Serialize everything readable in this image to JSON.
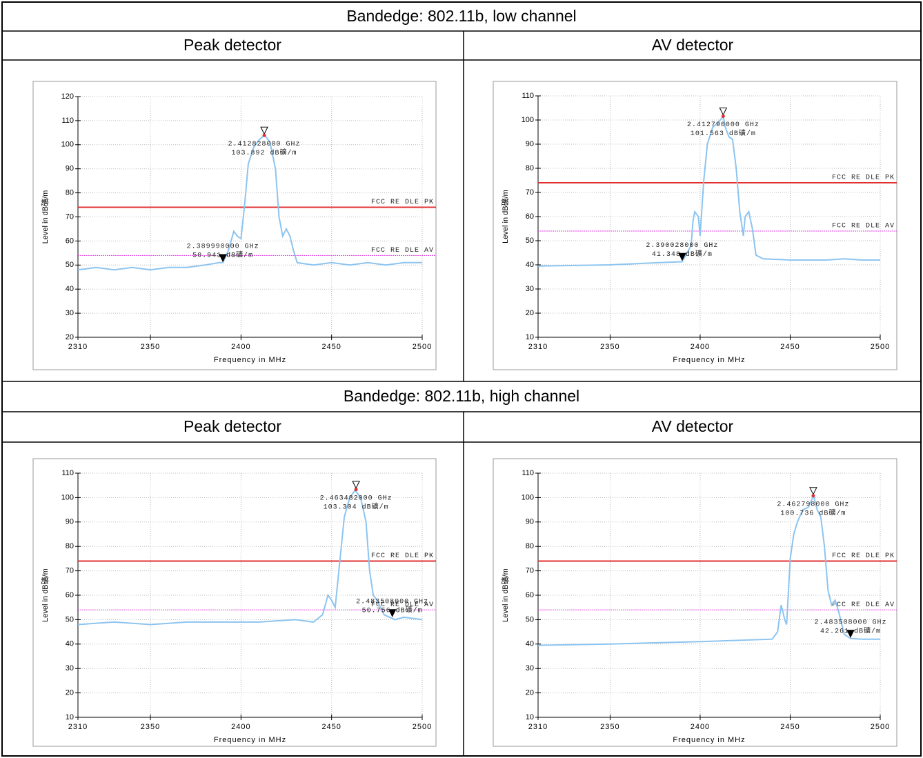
{
  "table": {
    "rows": [
      {
        "title": "Bandedge: 802.11b, low channel",
        "columns": [
          "Peak detector",
          "AV detector"
        ]
      },
      {
        "title": "Bandedge: 802.11b, high channel",
        "columns": [
          "Peak detector",
          "AV detector"
        ]
      }
    ]
  },
  "chart_data": [
    {
      "type": "line",
      "xlabel": "Frequency in MHz",
      "ylabel": "Level in dB礦/m",
      "xlim": [
        2310,
        2500
      ],
      "xticks": [
        2310,
        2350,
        2400,
        2450,
        2500
      ],
      "ylim": [
        20,
        120
      ],
      "yticks": [
        20,
        30,
        40,
        50,
        60,
        70,
        80,
        90,
        100,
        110,
        120
      ],
      "grid": true,
      "color": "#8cc4f0",
      "x": [
        2310,
        2320,
        2330,
        2340,
        2350,
        2360,
        2370,
        2380,
        2388,
        2390,
        2393,
        2396,
        2398,
        2400,
        2402,
        2404,
        2407,
        2410,
        2413,
        2416,
        2419,
        2421,
        2423,
        2425,
        2427,
        2429,
        2431,
        2440,
        2450,
        2460,
        2470,
        2480,
        2490,
        2500
      ],
      "values": [
        48,
        49,
        48,
        49,
        48,
        49,
        49,
        50,
        51,
        51,
        56,
        64,
        62,
        61,
        75,
        92,
        99,
        102,
        104,
        101,
        90,
        70,
        62,
        65,
        62,
        56,
        51,
        50,
        51,
        50,
        51,
        50,
        51,
        51
      ],
      "limits": [
        {
          "name": "FCC RE DLE PK",
          "value": 74,
          "color": "#e03030"
        },
        {
          "name": "FCC RE DLE AV",
          "value": 54,
          "color": "#e040e0"
        }
      ],
      "markers": [
        {
          "x": 2412.828,
          "y": 103.892,
          "labels": [
            "2.412828000 GHz",
            "103.892 dB礦/m"
          ]
        },
        {
          "x": 2389.99,
          "y": 50.941,
          "labels": [
            "2.389990000 GHz",
            "50.941 dB礦/m"
          ]
        }
      ]
    },
    {
      "type": "line",
      "xlabel": "Frequency in MHz",
      "ylabel": "Level in dB礦/m",
      "xlim": [
        2310,
        2500
      ],
      "xticks": [
        2310,
        2350,
        2400,
        2450,
        2500
      ],
      "ylim": [
        10,
        110
      ],
      "yticks": [
        10,
        20,
        30,
        40,
        50,
        60,
        70,
        80,
        90,
        100,
        110
      ],
      "grid": true,
      "color": "#8cc4f0",
      "x": [
        2310,
        2350,
        2380,
        2390,
        2395,
        2396,
        2397,
        2399,
        2400,
        2402,
        2404,
        2407,
        2410,
        2412.8,
        2414,
        2416,
        2418,
        2420,
        2422,
        2424,
        2425,
        2427,
        2429,
        2431,
        2435,
        2450,
        2470,
        2480,
        2490,
        2500
      ],
      "values": [
        39.5,
        40,
        41,
        41.3,
        48,
        58,
        62,
        60,
        52,
        75,
        90,
        97,
        99,
        101.5,
        97,
        93,
        92,
        80,
        62,
        52,
        60,
        62,
        55,
        44,
        42.5,
        42,
        42,
        42.5,
        42,
        42
      ],
      "limits": [
        {
          "name": "FCC RE DLE PK",
          "value": 74,
          "color": "#e03030"
        },
        {
          "name": "FCC RE DLE AV",
          "value": 54,
          "color": "#e040e0"
        }
      ],
      "markers": [
        {
          "x": 2412.79,
          "y": 101.563,
          "labels": [
            "2.412790000 GHz",
            "101.563 dB礦/m"
          ]
        },
        {
          "x": 2390.028,
          "y": 41.348,
          "labels": [
            "2.390028000 GHz",
            "41.348 dB礦/m"
          ]
        }
      ]
    },
    {
      "type": "line",
      "xlabel": "Frequency in MHz",
      "ylabel": "Level in dB礦/m",
      "xlim": [
        2310,
        2500
      ],
      "xticks": [
        2310,
        2350,
        2400,
        2450,
        2500
      ],
      "ylim": [
        10,
        110
      ],
      "yticks": [
        10,
        20,
        30,
        40,
        50,
        60,
        70,
        80,
        90,
        100,
        110
      ],
      "grid": true,
      "color": "#8cc4f0",
      "x": [
        2310,
        2330,
        2350,
        2370,
        2390,
        2410,
        2430,
        2440,
        2445,
        2448,
        2450,
        2452,
        2454,
        2457,
        2460,
        2463,
        2466,
        2469,
        2471,
        2473,
        2475,
        2477,
        2479,
        2485,
        2490,
        2500
      ],
      "values": [
        48,
        49,
        48,
        49,
        49,
        49,
        50,
        49,
        52,
        60,
        58,
        55,
        70,
        92,
        100,
        103,
        100,
        90,
        70,
        60,
        58,
        55,
        52,
        50,
        51,
        50
      ],
      "limits": [
        {
          "name": "FCC RE DLE PK",
          "value": 74,
          "color": "#e03030"
        },
        {
          "name": "FCC RE DLE AV",
          "value": 54,
          "color": "#e040e0"
        }
      ],
      "markers": [
        {
          "x": 2463.482,
          "y": 103.304,
          "labels": [
            "2.463482000 GHz",
            "103.304 dB礦/m"
          ]
        },
        {
          "x": 2483.508,
          "y": 50.756,
          "labels": [
            "2.483508000 GHz",
            "50.756 dB礦/m"
          ]
        }
      ]
    },
    {
      "type": "line",
      "xlabel": "Frequency in MHz",
      "ylabel": "Level in dB礦/m",
      "xlim": [
        2310,
        2500
      ],
      "xticks": [
        2310,
        2350,
        2400,
        2450,
        2500
      ],
      "ylim": [
        10,
        110
      ],
      "yticks": [
        10,
        20,
        30,
        40,
        50,
        60,
        70,
        80,
        90,
        100,
        110
      ],
      "grid": true,
      "color": "#8cc4f0",
      "x": [
        2310,
        2350,
        2400,
        2440,
        2443,
        2445,
        2447,
        2448,
        2450,
        2452,
        2454,
        2457,
        2460,
        2463,
        2465,
        2467,
        2469,
        2471,
        2473,
        2475,
        2477,
        2480,
        2483.5,
        2490,
        2500
      ],
      "values": [
        39.5,
        40,
        41,
        42,
        45,
        56,
        50,
        48,
        75,
        85,
        90,
        95,
        96,
        100.7,
        95,
        92,
        80,
        62,
        56,
        58,
        53,
        44,
        42.3,
        42,
        42
      ],
      "limits": [
        {
          "name": "FCC RE DLE PK",
          "value": 74,
          "color": "#e03030"
        },
        {
          "name": "FCC RE DLE AV",
          "value": 54,
          "color": "#e040e0"
        }
      ],
      "markers": [
        {
          "x": 2462.798,
          "y": 100.736,
          "labels": [
            "2.462798000 GHz",
            "100.736 dB礦/m"
          ]
        },
        {
          "x": 2483.508,
          "y": 42.261,
          "labels": [
            "2.483508000 GHz",
            "42.261 dB礦/m"
          ]
        }
      ]
    }
  ]
}
